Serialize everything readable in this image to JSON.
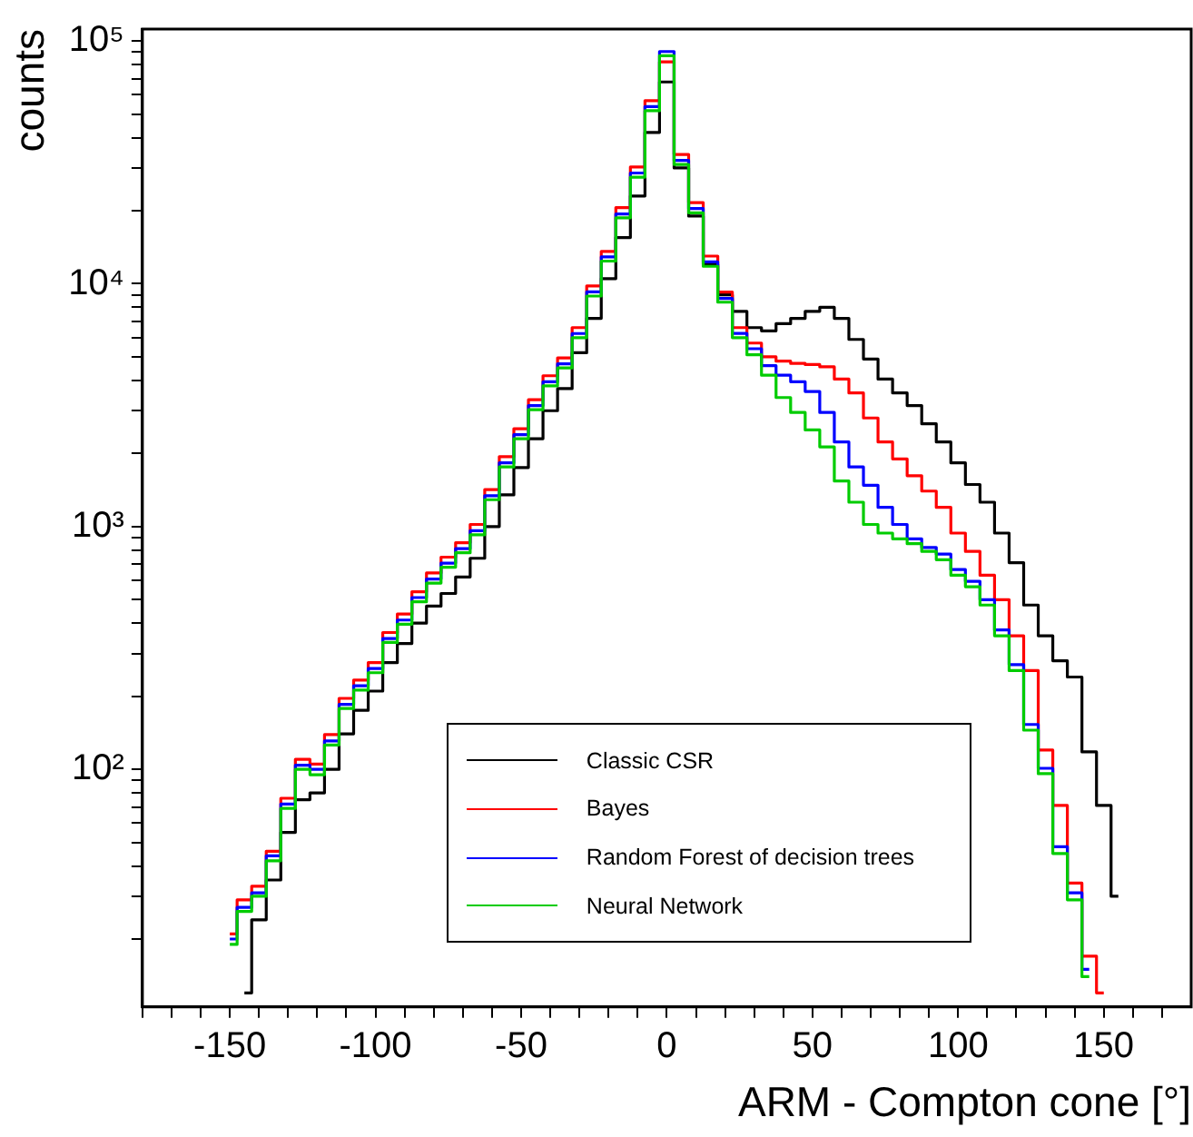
{
  "chart_data": {
    "type": "step",
    "xlabel": "ARM - Compton cone [°]",
    "ylabel": "counts",
    "log": "y",
    "grid": false,
    "legend": "bottom",
    "marker": "none",
    "line_style": "solid",
    "xlim": [
      -180,
      180
    ],
    "ylim": [
      10.5,
      112000
    ],
    "xticks": [
      {
        "value": -180,
        "label": null
      },
      {
        "value": -170,
        "label": null
      },
      {
        "value": -160,
        "label": null
      },
      -150,
      {
        "value": -140,
        "label": null
      },
      {
        "value": -130,
        "label": null
      },
      {
        "value": -120,
        "label": null
      },
      {
        "value": -110,
        "label": null
      },
      -100,
      {
        "value": -90,
        "label": null
      },
      {
        "value": -80,
        "label": null
      },
      {
        "value": -70,
        "label": null
      },
      {
        "value": -60,
        "label": null
      },
      -50,
      {
        "value": -40,
        "label": null
      },
      {
        "value": -30,
        "label": null
      },
      {
        "value": -20,
        "label": null
      },
      {
        "value": -10,
        "label": null
      },
      0,
      {
        "value": 10,
        "label": null
      },
      {
        "value": 20,
        "label": null
      },
      {
        "value": 30,
        "label": null
      },
      {
        "value": 40,
        "label": null
      },
      50,
      {
        "value": 60,
        "label": null
      },
      {
        "value": 70,
        "label": null
      },
      {
        "value": 80,
        "label": null
      },
      {
        "value": 90,
        "label": null
      },
      100,
      {
        "value": 110,
        "label": null
      },
      {
        "value": 120,
        "label": null
      },
      {
        "value": 130,
        "label": null
      },
      {
        "value": 140,
        "label": null
      },
      150,
      {
        "value": 160,
        "label": null
      },
      {
        "value": 170,
        "label": null
      }
    ],
    "yticks": [
      {
        "value": 20,
        "label": null
      },
      {
        "value": 30,
        "label": null
      },
      {
        "value": 40,
        "label": null
      },
      {
        "value": 50,
        "label": null
      },
      {
        "value": 60,
        "label": null
      },
      {
        "value": 70,
        "label": null
      },
      {
        "value": 80,
        "label": null
      },
      {
        "value": 90,
        "label": null
      },
      {
        "value": 100,
        "label": "10²"
      },
      {
        "value": 200,
        "label": null
      },
      {
        "value": 300,
        "label": null
      },
      {
        "value": 400,
        "label": null
      },
      {
        "value": 500,
        "label": null
      },
      {
        "value": 600,
        "label": null
      },
      {
        "value": 700,
        "label": null
      },
      {
        "value": 800,
        "label": null
      },
      {
        "value": 900,
        "label": null
      },
      {
        "value": 1000,
        "label": "10³"
      },
      {
        "value": 2000,
        "label": null
      },
      {
        "value": 3000,
        "label": null
      },
      {
        "value": 4000,
        "label": null
      },
      {
        "value": 5000,
        "label": null
      },
      {
        "value": 6000,
        "label": null
      },
      {
        "value": 7000,
        "label": null
      },
      {
        "value": 8000,
        "label": null
      },
      {
        "value": 9000,
        "label": null
      },
      {
        "value": 10000,
        "label": "10⁴"
      },
      {
        "value": 20000,
        "label": null
      },
      {
        "value": 30000,
        "label": null
      },
      {
        "value": 40000,
        "label": null
      },
      {
        "value": 50000,
        "label": null
      },
      {
        "value": 60000,
        "label": null
      },
      {
        "value": 70000,
        "label": null
      },
      {
        "value": 80000,
        "label": null
      },
      {
        "value": 90000,
        "label": null
      },
      {
        "value": 100000,
        "label": "10⁵"
      }
    ],
    "x": [
      -150,
      -145,
      -140,
      -135,
      -130,
      -125,
      -120,
      -115,
      -110,
      -105,
      -100,
      -95,
      -90,
      -85,
      -80,
      -75,
      -70,
      -65,
      -60,
      -55,
      -50,
      -45,
      -40,
      -35,
      -30,
      -25,
      -20,
      -15,
      -10,
      -5,
      0,
      5,
      10,
      15,
      20,
      25,
      30,
      35,
      40,
      45,
      50,
      55,
      60,
      65,
      70,
      75,
      80,
      85,
      90,
      95,
      100,
      105,
      110,
      115,
      120,
      125,
      130,
      135,
      140,
      145,
      150,
      155
    ],
    "series": [
      {
        "name": "Classic CSR",
        "color": "#000000",
        "values": [
          null,
          12,
          24,
          35,
          55,
          75,
          80,
          100,
          140,
          175,
          210,
          275,
          330,
          400,
          470,
          530,
          620,
          740,
          1000,
          1350,
          1750,
          2300,
          3000,
          3700,
          5200,
          7200,
          10500,
          15500,
          23000,
          42000,
          67800,
          30000,
          19000,
          12000,
          9000,
          7700,
          6600,
          6400,
          6850,
          7200,
          7700,
          8000,
          7200,
          5900,
          4900,
          4050,
          3550,
          3150,
          2650,
          2230,
          1830,
          1490,
          1260,
          940,
          710,
          475,
          355,
          280,
          240,
          118,
          71,
          30
        ]
      },
      {
        "name": "Bayes",
        "color": "#ff0000",
        "values": [
          21,
          29,
          33,
          46,
          76,
          110,
          105,
          139,
          196,
          233,
          275,
          366,
          436,
          539,
          644,
          748,
          858,
          1020,
          1420,
          1940,
          2530,
          3330,
          4180,
          4950,
          6600,
          9800,
          13600,
          20600,
          30300,
          56800,
          82000,
          34100,
          21600,
          13000,
          9240,
          6600,
          5700,
          5000,
          4800,
          4700,
          4650,
          4550,
          4050,
          3550,
          2800,
          2230,
          1900,
          1620,
          1400,
          1200,
          940,
          790,
          630,
          500,
          355,
          255,
          120,
          71,
          34,
          17,
          12,
          null
        ]
      },
      {
        "name": "Random Forest of decision trees",
        "color": "#0000ff",
        "values": [
          20,
          27,
          31,
          44,
          72,
          104,
          100,
          131,
          185,
          221,
          260,
          346,
          412,
          510,
          608,
          707,
          811,
          962,
          1340,
          1830,
          2390,
          3150,
          3950,
          4680,
          6240,
          9260,
          12900,
          19400,
          28600,
          53700,
          90500,
          32200,
          20400,
          12300,
          8700,
          6250,
          5400,
          4600,
          4200,
          3950,
          3600,
          2950,
          2230,
          1760,
          1480,
          1200,
          1020,
          890,
          820,
          770,
          665,
          595,
          500,
          375,
          270,
          153,
          101,
          48,
          31,
          15,
          null,
          null
        ]
      },
      {
        "name": "Neural Network",
        "color": "#00cc00",
        "values": [
          19,
          26,
          30,
          42,
          69,
          100,
          95,
          126,
          178,
          212,
          250,
          333,
          396,
          490,
          585,
          680,
          780,
          925,
          1290,
          1760,
          2300,
          3030,
          3800,
          4500,
          6000,
          8900,
          12400,
          18700,
          27500,
          51600,
          87000,
          31000,
          19600,
          11800,
          8400,
          6000,
          5100,
          4200,
          3400,
          2950,
          2500,
          2130,
          1540,
          1260,
          1020,
          940,
          890,
          850,
          790,
          730,
          630,
          565,
          475,
          355,
          255,
          145,
          96,
          45,
          29,
          14,
          null,
          null
        ]
      }
    ]
  }
}
